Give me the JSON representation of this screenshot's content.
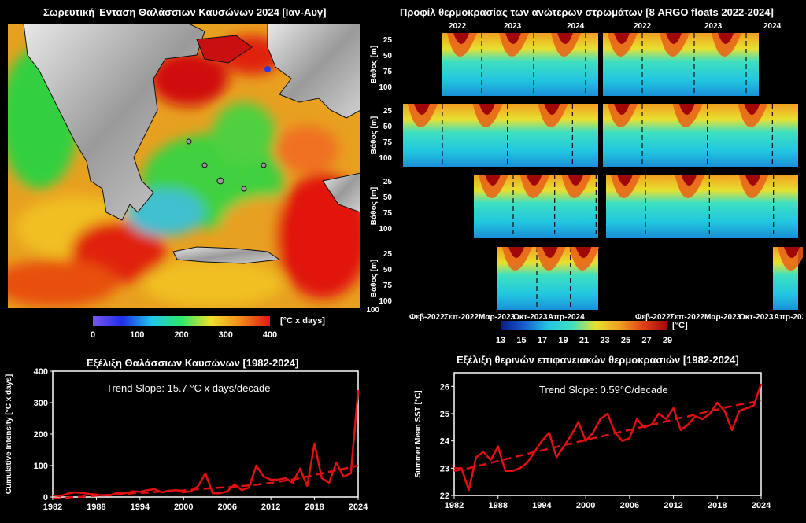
{
  "map_panel": {
    "title": "Σωρευτική Ένταση Θαλάσσιων Καυσώνων 2024 [Ιαν-Αυγ]",
    "colorbar": {
      "ticks": [
        "0",
        "100",
        "200",
        "300",
        "400"
      ],
      "unit": "[°C x days]",
      "colors": [
        "#7a56f0",
        "#1f2ee8",
        "#1ec8e8",
        "#2ee86a",
        "#f0e02a",
        "#f08a1a",
        "#e01818"
      ]
    }
  },
  "argo_panel": {
    "title": "Προφίλ θερμοκρασίας των ανώτερων στρωμάτων [8 ARGO floats 2022-2024]",
    "years": [
      "2022",
      "2023",
      "2024"
    ],
    "depth_label": "Βάθος [m]",
    "depth_ticks": [
      "25",
      "50",
      "75",
      "100"
    ],
    "x_ticks": [
      "Φεβ-2022",
      "Σεπ-2022",
      "Μαρ-2023",
      "Οκτ-2023",
      "Απρ-2024"
    ],
    "colorbar": {
      "ticks": [
        "13",
        "15",
        "17",
        "19",
        "21",
        "23",
        "25",
        "27",
        "29"
      ],
      "unit": "[°C]",
      "colors": [
        "#0a1a8c",
        "#1660d0",
        "#22c6e0",
        "#3fe0c0",
        "#e8e030",
        "#f0a020",
        "#e04018",
        "#a00808"
      ]
    }
  },
  "chart_data": [
    {
      "type": "line",
      "title": "Εξέλιξη Θαλάσσιων Καυσώνων [1982-2024]",
      "ylabel": "Cumulative Intensity [°C x days]",
      "xlabel": "",
      "annotation": "Trend Slope: 15.7 °C x days/decade",
      "xlim": [
        1982,
        2024
      ],
      "ylim": [
        0,
        400
      ],
      "x_ticks": [
        1982,
        1988,
        1994,
        2000,
        2006,
        2012,
        2018,
        2024
      ],
      "y_ticks": [
        0,
        100,
        200,
        300,
        400
      ],
      "x": [
        1982,
        1983,
        1984,
        1985,
        1986,
        1987,
        1988,
        1989,
        1990,
        1991,
        1992,
        1993,
        1994,
        1995,
        1996,
        1997,
        1998,
        1999,
        2000,
        2001,
        2002,
        2003,
        2004,
        2005,
        2006,
        2007,
        2008,
        2009,
        2010,
        2011,
        2012,
        2013,
        2014,
        2015,
        2016,
        2017,
        2018,
        2019,
        2020,
        2021,
        2022,
        2023,
        2024
      ],
      "series": [
        {
          "values": [
            5,
            3,
            10,
            15,
            13,
            10,
            8,
            5,
            6,
            15,
            12,
            18,
            17,
            22,
            25,
            15,
            20,
            22,
            15,
            18,
            35,
            75,
            12,
            12,
            18,
            40,
            22,
            30,
            100,
            65,
            55,
            55,
            60,
            45,
            90,
            35,
            170,
            60,
            45,
            110,
            65,
            75,
            340
          ],
          "color": "#e01010",
          "style": "solid"
        },
        {
          "values": [
            -5,
            -4,
            -2,
            0,
            1,
            3,
            4,
            6,
            7,
            8,
            10,
            12,
            13,
            14,
            16,
            18,
            19,
            20,
            21,
            23,
            25,
            27,
            28,
            30,
            31,
            33,
            35,
            37,
            39,
            42,
            45,
            48,
            52,
            56,
            60,
            65,
            70,
            75,
            80,
            85,
            90,
            95,
            100
          ],
          "color": "#e01010",
          "style": "dashed"
        }
      ]
    },
    {
      "type": "line",
      "title": "Εξέλιξη θερινών επιφανειακών θερμοκρασιών [1982-2024]",
      "ylabel": "Summer Mean SST [°C]",
      "xlabel": "",
      "annotation": "Trend Slope: 0.59°C/decade",
      "xlim": [
        1982,
        2024
      ],
      "ylim": [
        22,
        26.5
      ],
      "x_ticks": [
        1982,
        1988,
        1994,
        2000,
        2006,
        2012,
        2018,
        2024
      ],
      "y_ticks": [
        22,
        23,
        24,
        25,
        26
      ],
      "x": [
        1982,
        1983,
        1984,
        1985,
        1986,
        1987,
        1988,
        1989,
        1990,
        1991,
        1992,
        1993,
        1994,
        1995,
        1996,
        1997,
        1998,
        1999,
        2000,
        2001,
        2002,
        2003,
        2004,
        2005,
        2006,
        2007,
        2008,
        2009,
        2010,
        2011,
        2012,
        2013,
        2014,
        2015,
        2016,
        2017,
        2018,
        2019,
        2020,
        2021,
        2022,
        2023,
        2024
      ],
      "series": [
        {
          "values": [
            23.0,
            23.0,
            22.2,
            23.4,
            23.6,
            23.3,
            23.8,
            22.9,
            22.9,
            23.0,
            23.2,
            23.6,
            24.0,
            24.3,
            23.4,
            23.8,
            24.2,
            24.7,
            24.0,
            24.3,
            24.8,
            25.0,
            24.3,
            24.0,
            24.1,
            24.8,
            24.5,
            24.6,
            25.0,
            24.8,
            25.2,
            24.4,
            24.6,
            24.9,
            24.8,
            25.0,
            25.4,
            25.1,
            24.4,
            25.1,
            25.2,
            25.3,
            26.1
          ],
          "color": "#e01010",
          "style": "solid"
        },
        {
          "values": [
            22.9,
            22.95,
            23.0,
            23.07,
            23.13,
            23.2,
            23.26,
            23.33,
            23.39,
            23.46,
            23.52,
            23.6,
            23.65,
            23.72,
            23.78,
            23.85,
            23.9,
            23.97,
            24.03,
            24.1,
            24.15,
            24.22,
            24.28,
            24.35,
            24.4,
            24.47,
            24.53,
            24.6,
            24.65,
            24.72,
            24.78,
            24.85,
            24.9,
            24.97,
            25.03,
            25.1,
            25.15,
            25.22,
            25.28,
            25.33,
            25.38,
            25.43,
            25.48
          ],
          "color": "#e01010",
          "style": "dashed"
        }
      ]
    }
  ]
}
